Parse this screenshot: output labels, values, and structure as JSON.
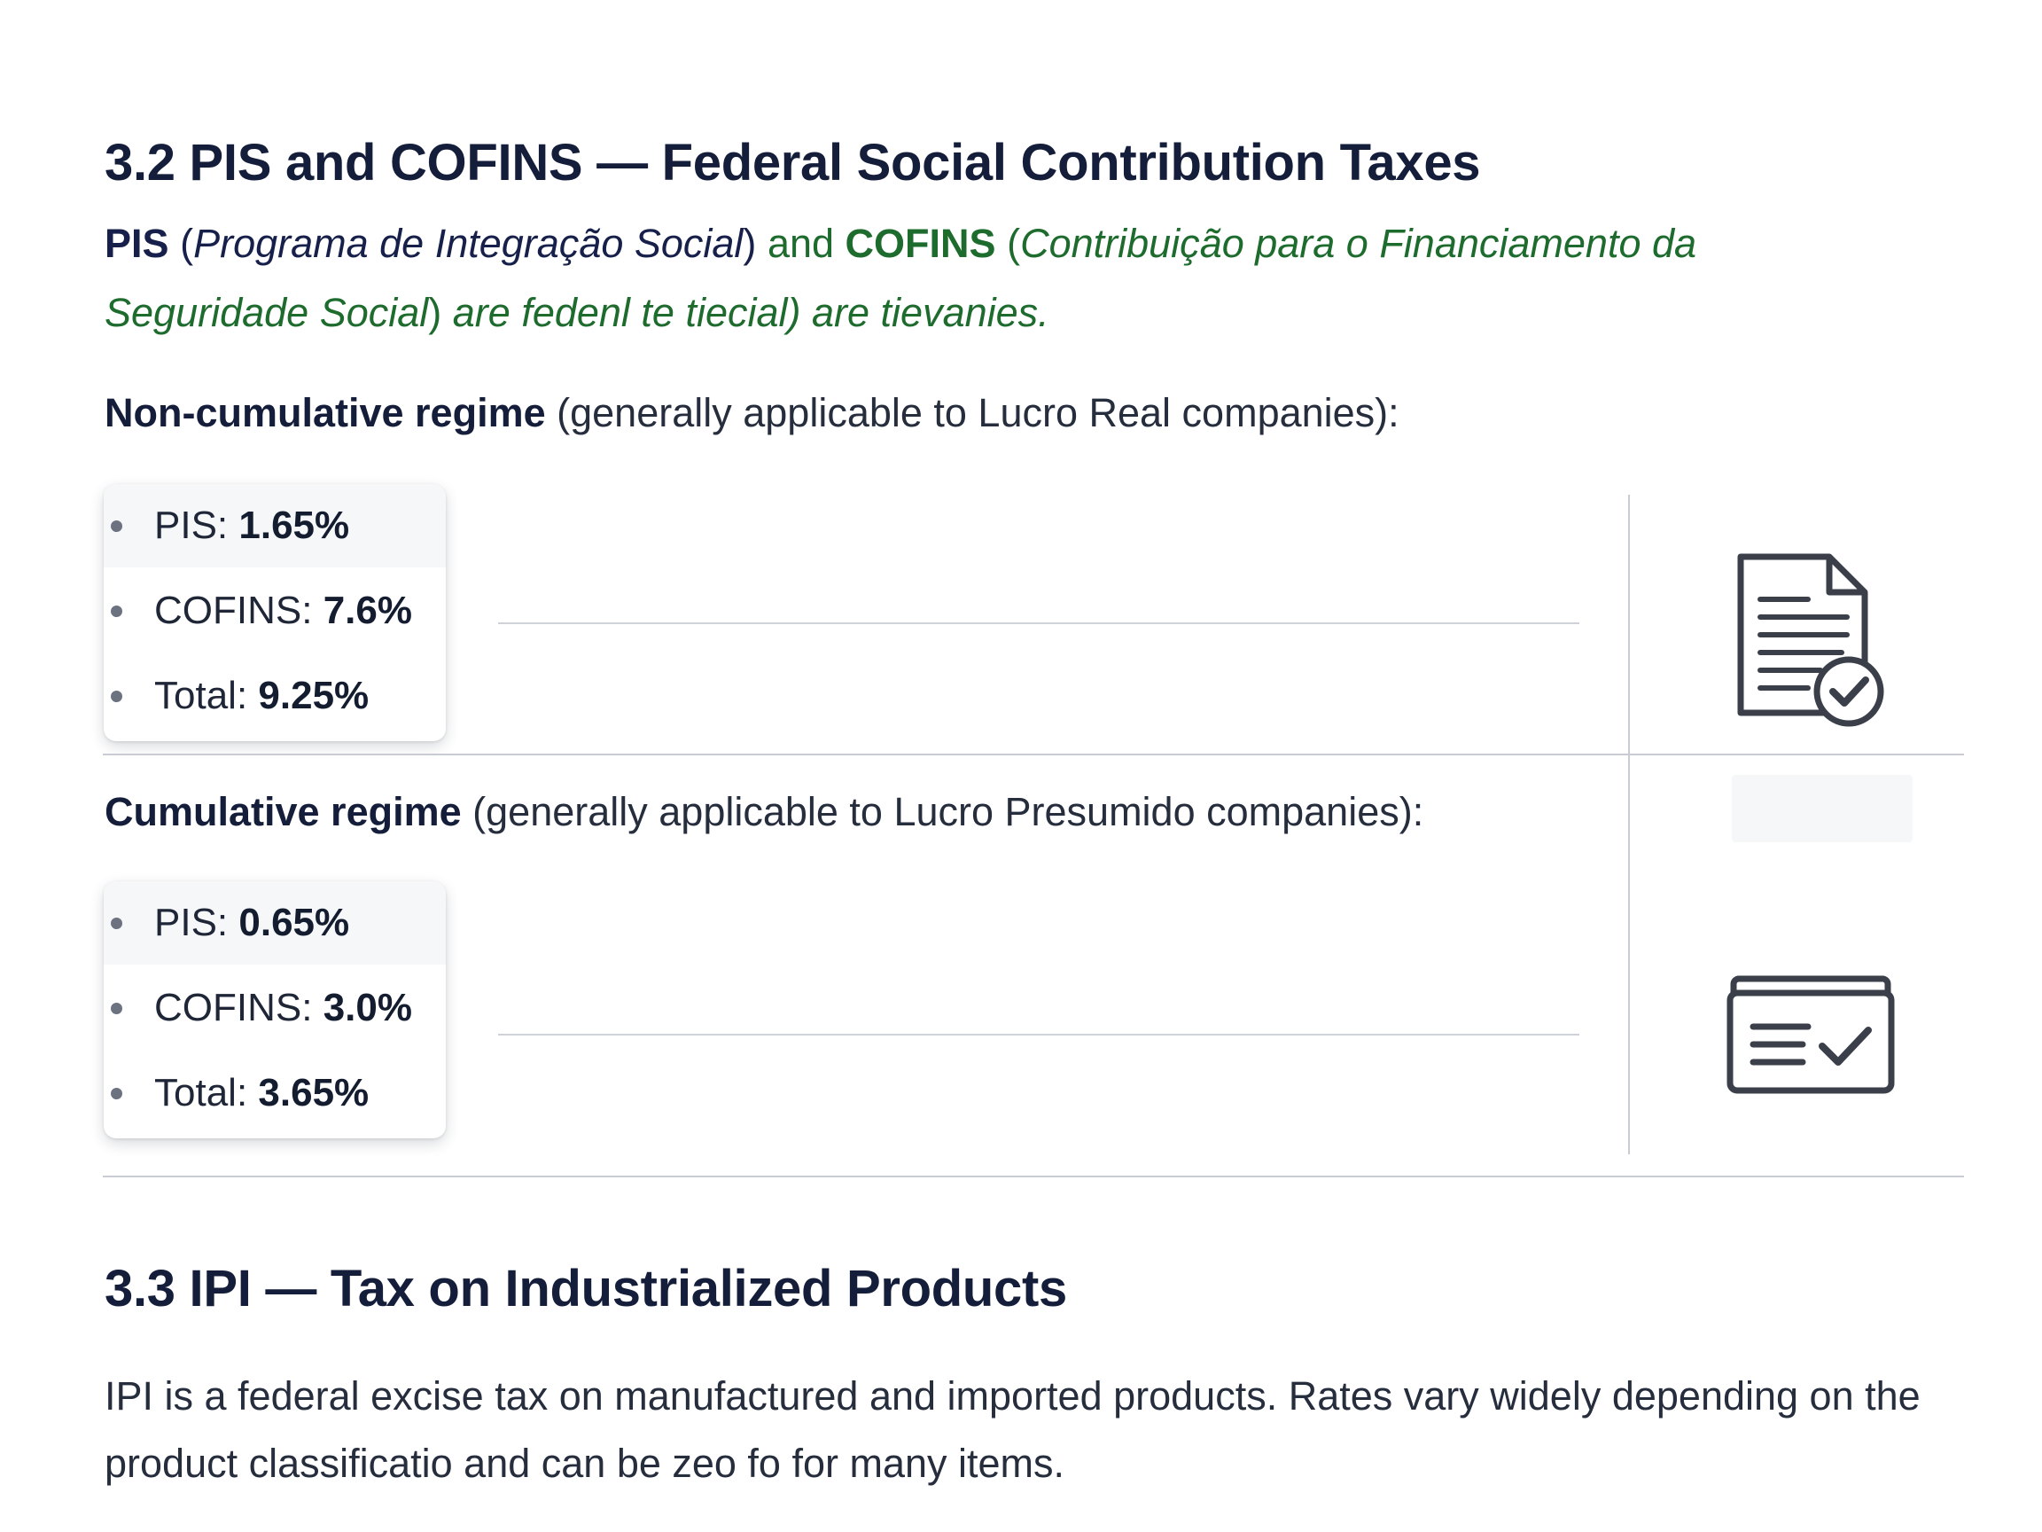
{
  "section_32": {
    "title": "3.2 PIS and COFINS — Federal Social Contribution Taxes",
    "intro": {
      "pis": "PIS",
      "pis_full": "Programa de Integração Social",
      "and": "and",
      "cofins": "COFINS",
      "cofins_full": "Contribuição para o Financiamento da Seguridade Social",
      "tail": "are fedenl te tiecial) are tievanies."
    },
    "non_cumulative": {
      "label": "Non-cumulative regime",
      "note": "(generally applicable to Lucro Real companies):",
      "rates": [
        {
          "name": "PIS:",
          "value": "1.65%"
        },
        {
          "name": "COFINS:",
          "value": "7.6%"
        },
        {
          "name": "Total:",
          "value": "9.25%"
        }
      ],
      "icon": "document-check-icon"
    },
    "cumulative": {
      "label": "Cumulative regime",
      "note": "(generally applicable to Lucro Presumido companies):",
      "rates": [
        {
          "name": "PIS:",
          "value": "0.65%"
        },
        {
          "name": "COFINS:",
          "value": "3.0%"
        },
        {
          "name": "Total:",
          "value": "3.65%"
        }
      ],
      "icon": "form-check-icon"
    }
  },
  "section_33": {
    "title": "3.3 IPI — Tax on Industrialized Products",
    "body": "IPI is a federal excise tax on manufactured and imported products. Rates vary widely depending on the product classificatio and can be zeo fo for many items."
  },
  "colors": {
    "heading": "#141d3a",
    "accent_green": "#1e6b2e",
    "body_text": "#262d3d",
    "divider": "#c9ccd2"
  }
}
